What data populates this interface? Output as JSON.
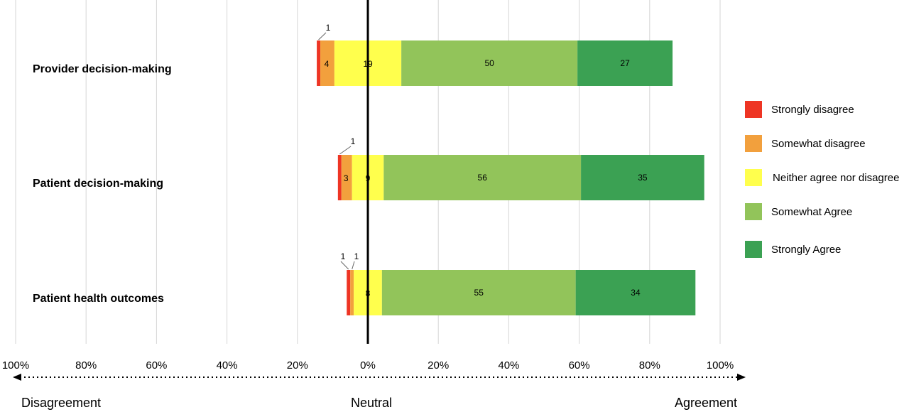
{
  "chart_data": {
    "type": "bar",
    "orientation": "horizontal",
    "stacked": true,
    "diverging": true,
    "categories": [
      "Provider decision-making",
      "Patient decision-making",
      "Patient health outcomes"
    ],
    "series": [
      {
        "name": "Strongly disagree",
        "color": "#ee3524",
        "values": [
          1,
          1,
          1
        ],
        "side": "negative"
      },
      {
        "name": "Somewhat disagree",
        "color": "#f2a03d",
        "values": [
          4,
          3,
          1
        ],
        "side": "negative"
      },
      {
        "name": "Neither agree nor disagree",
        "color": "#ffff4d",
        "values": [
          19,
          9,
          8
        ],
        "side": "center"
      },
      {
        "name": "Somewhat Agree",
        "color": "#92c45a",
        "values": [
          50,
          56,
          55
        ],
        "side": "positive"
      },
      {
        "name": "Strongly Agree",
        "color": "#3ba153",
        "values": [
          27,
          35,
          34
        ],
        "side": "positive"
      }
    ],
    "segment_labels": [
      [
        "1",
        "4",
        "19",
        "50",
        "27"
      ],
      [
        "1",
        "3",
        "9",
        "56",
        "35"
      ],
      [
        "1",
        "1",
        "8",
        "55",
        "34"
      ]
    ],
    "xlim": [
      -100,
      100
    ],
    "x_ticks": [
      -100,
      -80,
      -60,
      -40,
      -20,
      0,
      20,
      40,
      60,
      80,
      100
    ],
    "x_tick_labels": [
      "100%",
      "80%",
      "60%",
      "40%",
      "20%",
      "0%",
      "20%",
      "40%",
      "60%",
      "80%",
      "100%"
    ],
    "grid": true,
    "legend_position": "right",
    "direction_labels": {
      "left": "Disagreement",
      "center": "Neutral",
      "right": "Agreement"
    }
  }
}
